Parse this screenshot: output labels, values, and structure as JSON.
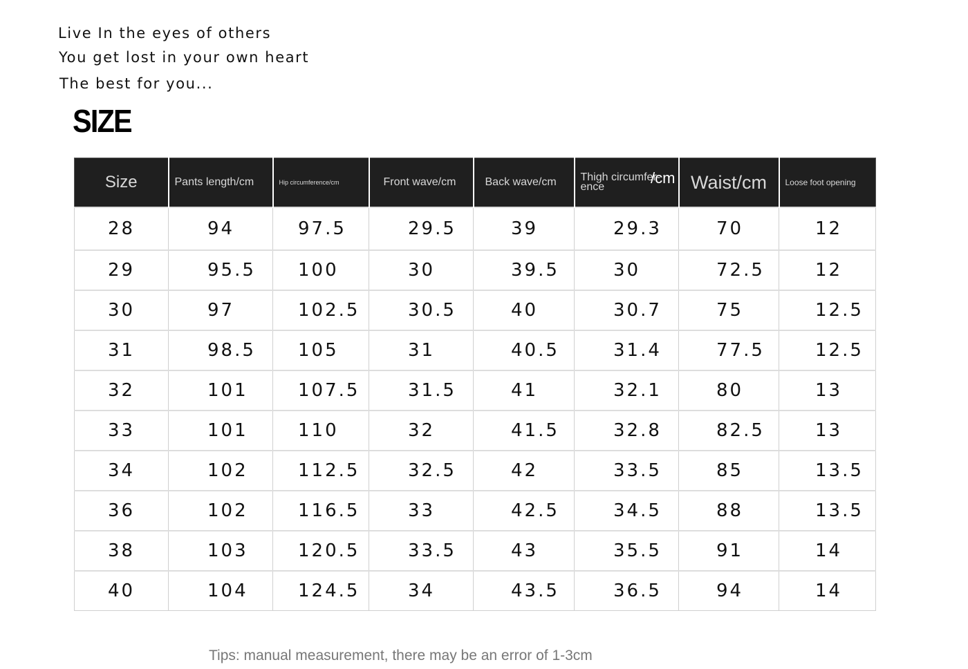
{
  "slogan": [
    "Live In the eyes of others",
    "You get lost in your own heart",
    "The best for you..."
  ],
  "size_title": "SIZE",
  "table": {
    "headers": [
      "Size",
      "Pants length/cm",
      "Hip circumference/cm",
      "Front wave/cm",
      "Back wave/cm",
      "Thigh circumfer-ence",
      "Waist/cm",
      "Loose foot opening"
    ],
    "thigh_unit": "/cm",
    "rows": [
      [
        "28",
        "94",
        "97.5",
        "29.5",
        "39",
        "29.3",
        "70",
        "12"
      ],
      [
        "29",
        "95.5",
        "100",
        "30",
        "39.5",
        "30",
        "72.5",
        "12"
      ],
      [
        "30",
        "97",
        "102.5",
        "30.5",
        "40",
        "30.7",
        "75",
        "12.5"
      ],
      [
        "31",
        "98.5",
        "105",
        "31",
        "40.5",
        "31.4",
        "77.5",
        "12.5"
      ],
      [
        "32",
        "101",
        "107.5",
        "31.5",
        "41",
        "32.1",
        "80",
        "13"
      ],
      [
        "33",
        "101",
        "110",
        "32",
        "41.5",
        "32.8",
        "82.5",
        "13"
      ],
      [
        "34",
        "102",
        "112.5",
        "32.5",
        "42",
        "33.5",
        "85",
        "13.5"
      ],
      [
        "36",
        "102",
        "116.5",
        "33",
        "42.5",
        "34.5",
        "88",
        "13.5"
      ],
      [
        "38",
        "103",
        "120.5",
        "33.5",
        "43",
        "35.5",
        "91",
        "14"
      ],
      [
        "40",
        "104",
        "124.5",
        "34",
        "43.5",
        "36.5",
        "94",
        "14"
      ]
    ]
  },
  "tips": "Tips: manual measurement, there may be an error of 1-3cm",
  "colors": {
    "header_bg": "#1f1f1f",
    "header_text": "#d8d8d8",
    "grid": "#cfcfcf",
    "tips_text": "#777777"
  }
}
